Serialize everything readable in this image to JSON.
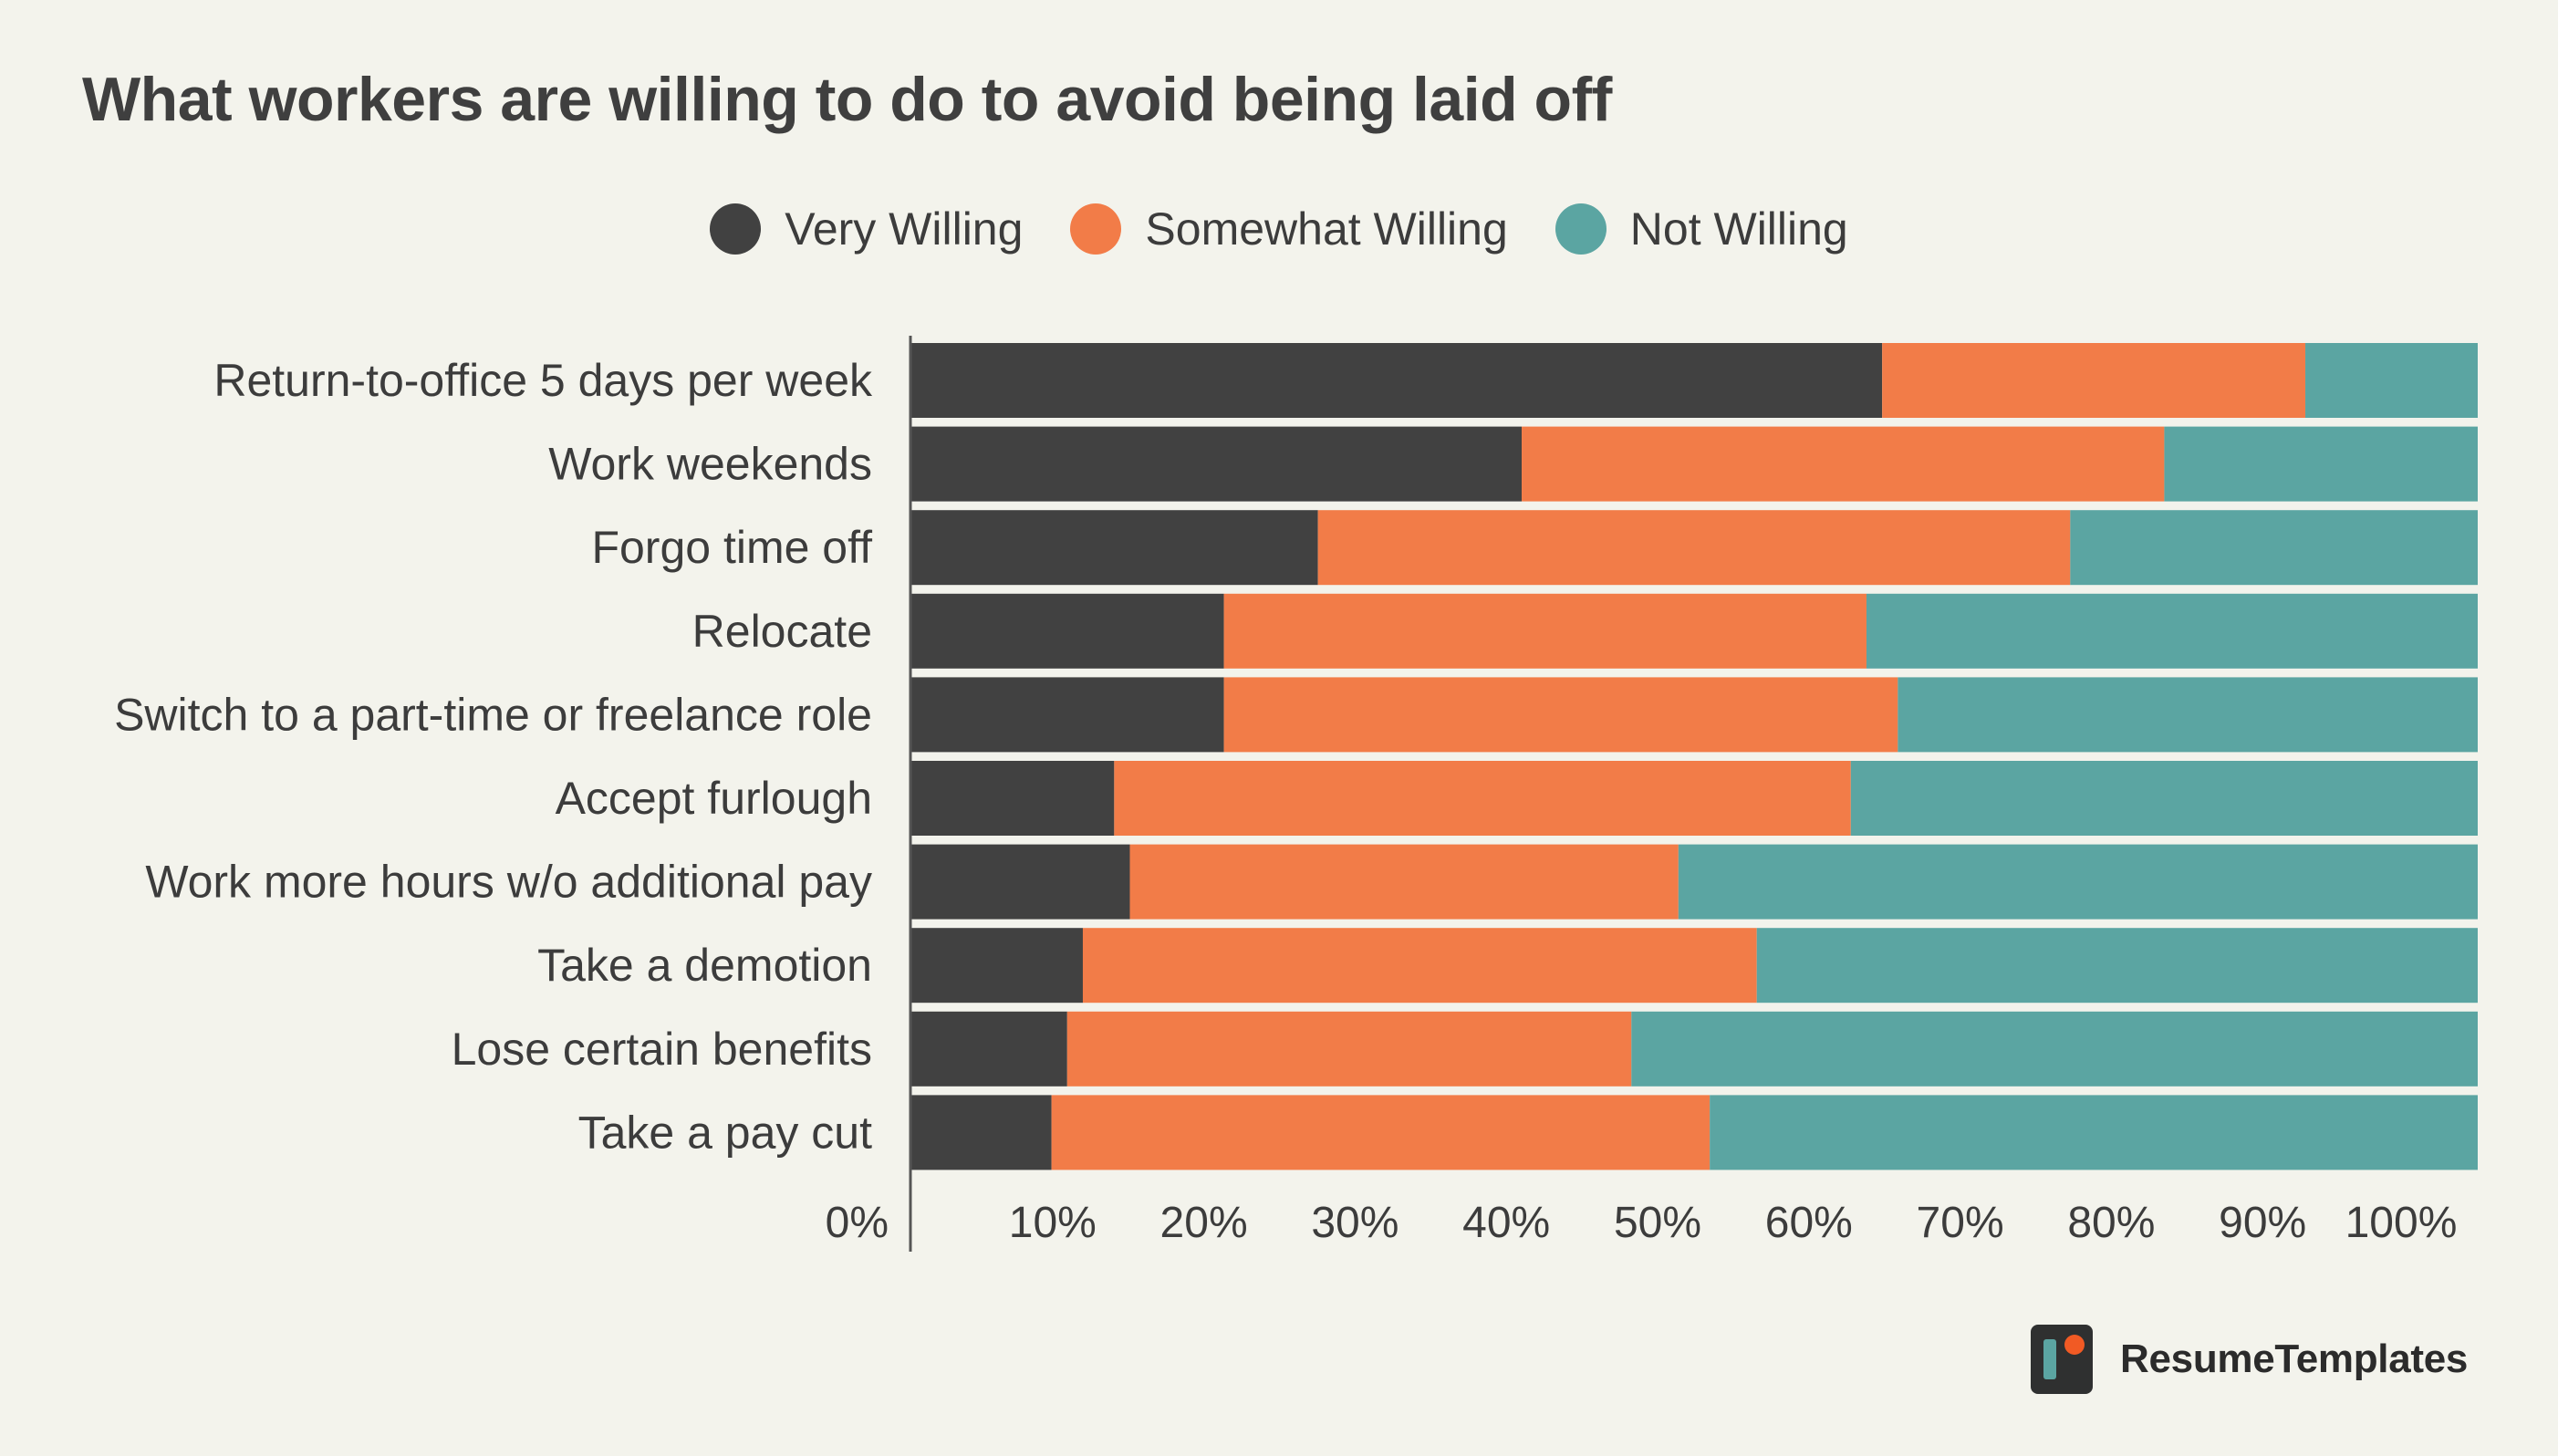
{
  "chart_data": {
    "type": "bar",
    "orientation": "horizontal",
    "stacked": true,
    "title": "What workers are willing to do to avoid being laid off",
    "categories": [
      "Return-to-office 5 days per week",
      "Work weekends",
      "Forgo time off",
      "Relocate",
      "Switch to a part-time or freelance role",
      "Accept furlough",
      "Work more hours w/o additional pay",
      "Take a demotion",
      "Lose certain benefits",
      "Take a pay cut"
    ],
    "series": [
      {
        "name": "Very Willing",
        "color": "#414141",
        "values": [
          62,
          39,
          26,
          20,
          20,
          13,
          14,
          11,
          10,
          9
        ]
      },
      {
        "name": "Somewhat Willing",
        "color": "#f27c48",
        "values": [
          27,
          41,
          48,
          41,
          43,
          47,
          35,
          43,
          36,
          42
        ]
      },
      {
        "name": "Not Willing",
        "color": "#5ba5a2",
        "values": [
          11,
          20,
          26,
          39,
          37,
          40,
          51,
          46,
          54,
          49
        ]
      }
    ],
    "x_ticks": [
      "0%",
      "10%",
      "20%",
      "30%",
      "40%",
      "50%",
      "60%",
      "70%",
      "80%",
      "90%",
      "100%"
    ],
    "xlim": [
      0,
      100
    ],
    "grid": false,
    "legend_position": "top-center"
  },
  "brand": {
    "name": "ResumeTemplates",
    "icon": "resume-templates-logo-icon"
  }
}
